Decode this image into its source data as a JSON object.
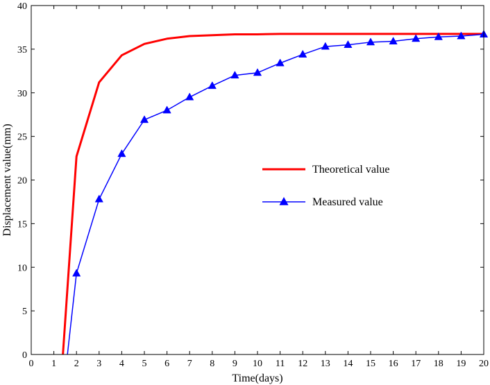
{
  "chart_data": {
    "type": "line",
    "title": "",
    "xlabel": "Time(days)",
    "ylabel": "Displacement value(mm)",
    "xlim": [
      0,
      20
    ],
    "ylim": [
      0,
      40
    ],
    "xticks": [
      0,
      1,
      2,
      3,
      4,
      5,
      6,
      7,
      8,
      9,
      10,
      11,
      12,
      13,
      14,
      15,
      16,
      17,
      18,
      19,
      20
    ],
    "yticks": [
      0,
      5,
      10,
      15,
      20,
      25,
      30,
      35,
      40
    ],
    "grid": false,
    "legend_position": "center-right",
    "series": [
      {
        "name": "Theoretical value",
        "color": "#ff0000",
        "marker": "none",
        "x": [
          1.4,
          2,
          3,
          4,
          5,
          6,
          7,
          8,
          9,
          10,
          11,
          12,
          13,
          14,
          15,
          16,
          17,
          18,
          19,
          20
        ],
        "y": [
          0,
          22.7,
          31.2,
          34.3,
          35.6,
          36.2,
          36.5,
          36.6,
          36.7,
          36.7,
          36.75,
          36.75,
          36.75,
          36.75,
          36.75,
          36.75,
          36.75,
          36.75,
          36.75,
          36.75
        ]
      },
      {
        "name": "Measured value",
        "color": "#0000ff",
        "marker": "triangle",
        "x": [
          1.6,
          2,
          3,
          4,
          5,
          6,
          7,
          8,
          9,
          10,
          11,
          12,
          13,
          14,
          15,
          16,
          17,
          18,
          19,
          20
        ],
        "y": [
          0,
          9.3,
          17.8,
          23.0,
          26.9,
          28.0,
          29.5,
          30.8,
          32.0,
          32.3,
          33.4,
          34.4,
          35.3,
          35.5,
          35.8,
          35.9,
          36.2,
          36.4,
          36.5,
          36.7
        ],
        "marker_from_index": 1
      }
    ]
  }
}
